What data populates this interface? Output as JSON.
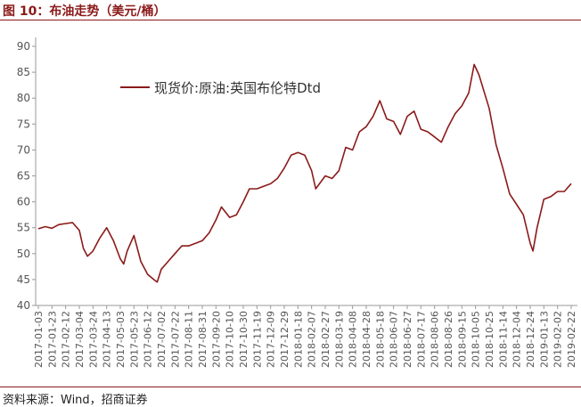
{
  "header": {
    "title": "图 10：布油走势（美元/桶）"
  },
  "footer": {
    "source": "资料来源：Wind，招商证券"
  },
  "colors": {
    "accent": "#8B1A1A",
    "line": "#8B1A1A"
  },
  "chart_data": {
    "type": "line",
    "title": "",
    "xlabel": "",
    "ylabel": "",
    "ylim": [
      40,
      90
    ],
    "yticks": [
      40,
      45,
      50,
      55,
      60,
      65,
      70,
      75,
      80,
      85,
      90
    ],
    "grid": false,
    "legend_position": "top-left",
    "x_tick_labels": [
      "2017-01-03",
      "2017-01-23",
      "2017-02-12",
      "2017-03-04",
      "2017-03-24",
      "2017-04-13",
      "2017-05-03",
      "2017-05-23",
      "2017-06-12",
      "2017-07-02",
      "2017-07-22",
      "2017-08-11",
      "2017-08-31",
      "2017-09-20",
      "2017-10-10",
      "2017-10-30",
      "2017-11-19",
      "2017-12-09",
      "2017-12-29",
      "2018-01-18",
      "2018-02-07",
      "2018-02-27",
      "2018-03-19",
      "2018-04-08",
      "2018-04-28",
      "2018-05-18",
      "2018-06-07",
      "2018-06-27",
      "2018-07-17",
      "2018-08-06",
      "2018-08-26",
      "2018-09-15",
      "2018-10-05",
      "2018-10-25",
      "2018-11-14",
      "2018-12-04",
      "2018-12-24",
      "2019-01-13",
      "2019-02-02",
      "2019-02-22"
    ],
    "series": [
      {
        "name": "现货价:原油:英国布伦特Dtd",
        "x": [
          "2017-01-03",
          "2017-01-13",
          "2017-01-23",
          "2017-02-02",
          "2017-02-12",
          "2017-02-22",
          "2017-03-04",
          "2017-03-10",
          "2017-03-16",
          "2017-03-24",
          "2017-04-03",
          "2017-04-13",
          "2017-04-23",
          "2017-05-03",
          "2017-05-08",
          "2017-05-13",
          "2017-05-23",
          "2017-06-02",
          "2017-06-12",
          "2017-06-21",
          "2017-06-26",
          "2017-07-02",
          "2017-07-12",
          "2017-07-22",
          "2017-08-01",
          "2017-08-11",
          "2017-08-21",
          "2017-08-31",
          "2017-09-10",
          "2017-09-20",
          "2017-09-28",
          "2017-10-10",
          "2017-10-20",
          "2017-10-30",
          "2017-11-08",
          "2017-11-19",
          "2017-11-29",
          "2017-12-09",
          "2017-12-19",
          "2017-12-29",
          "2018-01-08",
          "2018-01-18",
          "2018-01-28",
          "2018-02-07",
          "2018-02-13",
          "2018-02-27",
          "2018-03-09",
          "2018-03-19",
          "2018-03-29",
          "2018-04-08",
          "2018-04-18",
          "2018-04-28",
          "2018-05-08",
          "2018-05-18",
          "2018-05-28",
          "2018-06-07",
          "2018-06-17",
          "2018-06-27",
          "2018-07-07",
          "2018-07-17",
          "2018-07-27",
          "2018-08-06",
          "2018-08-16",
          "2018-08-26",
          "2018-09-05",
          "2018-09-15",
          "2018-09-25",
          "2018-10-03",
          "2018-10-10",
          "2018-10-25",
          "2018-11-04",
          "2018-11-14",
          "2018-11-24",
          "2018-12-04",
          "2018-12-14",
          "2018-12-24",
          "2018-12-28",
          "2019-01-03",
          "2019-01-13",
          "2019-01-23",
          "2019-02-02",
          "2019-02-12",
          "2019-02-22"
        ],
        "values": [
          54.8,
          55.2,
          54.9,
          55.6,
          55.8,
          56.0,
          54.5,
          51.0,
          49.5,
          50.5,
          53.0,
          55.0,
          52.5,
          49.0,
          48.0,
          50.5,
          53.5,
          48.5,
          46.0,
          45.0,
          44.5,
          47.0,
          48.5,
          50.0,
          51.5,
          51.5,
          52.0,
          52.5,
          54.0,
          56.5,
          59.0,
          57.0,
          57.5,
          60.0,
          62.5,
          62.5,
          63.0,
          63.5,
          64.5,
          66.5,
          69.0,
          69.5,
          69.0,
          66.0,
          62.5,
          65.0,
          64.5,
          66.0,
          70.5,
          70.0,
          73.5,
          74.5,
          76.5,
          79.5,
          76.0,
          75.5,
          73.0,
          76.5,
          77.5,
          74.0,
          73.5,
          72.5,
          71.5,
          74.5,
          77.0,
          78.5,
          81.0,
          86.5,
          84.5,
          78.0,
          71.0,
          66.5,
          61.5,
          59.5,
          57.5,
          52.0,
          50.5,
          55.0,
          60.5,
          61.0,
          62.0,
          62.0,
          63.5
        ]
      }
    ]
  }
}
